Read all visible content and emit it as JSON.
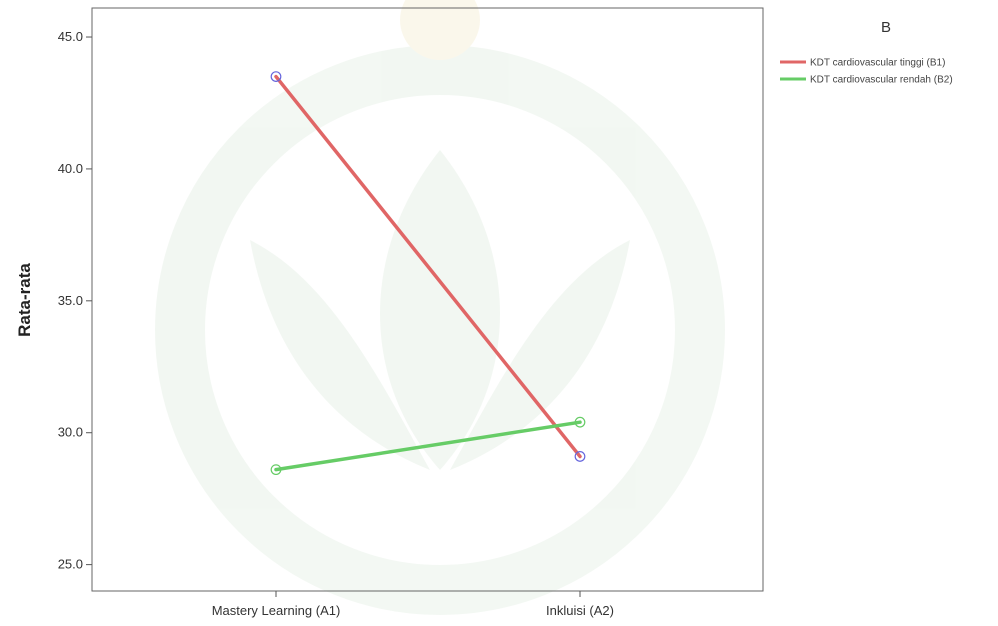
{
  "chart_data": {
    "type": "line",
    "title": "",
    "xlabel": "",
    "ylabel": "Rata-rata",
    "categories": [
      "Mastery Learning (A1)",
      "Inkluisi (A2)"
    ],
    "series": [
      {
        "name": "KDT cardiovascular tinggi (B1)",
        "values": [
          43.5,
          29.1
        ],
        "color": "#e06666",
        "marker_color": "#6666dd"
      },
      {
        "name": "KDT cardiovascular rendah (B2)",
        "values": [
          28.6,
          30.4
        ],
        "color": "#66cc66",
        "marker_color": "#66cc66"
      }
    ],
    "ylim": [
      24.0,
      46.1
    ],
    "yticks": [
      25.0,
      30.0,
      35.0,
      40.0,
      45.0
    ],
    "ytick_labels": [
      "25.0",
      "30.0",
      "35.0",
      "40.0",
      "45.0"
    ],
    "legend_title": "B",
    "legend_position": "top-right",
    "grid": false
  }
}
